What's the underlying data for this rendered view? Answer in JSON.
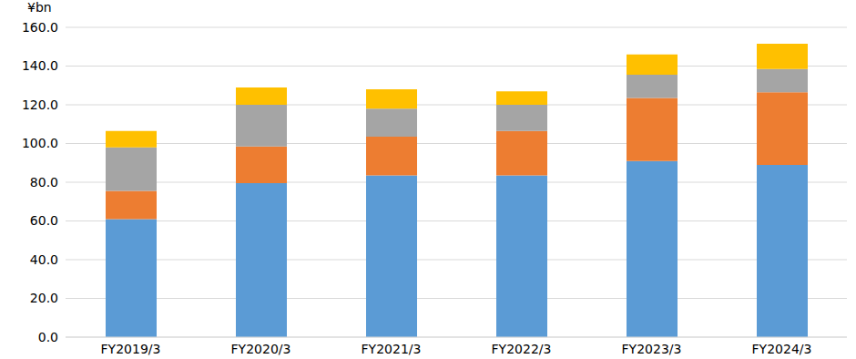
{
  "chart_data": {
    "type": "bar",
    "stacked": true,
    "y_label": "¥bn",
    "categories": [
      "FY2019/3",
      "FY2020/3",
      "FY2021/3",
      "FY2022/3",
      "FY2023/3",
      "FY2024/3"
    ],
    "series": [
      {
        "color": "#5B9BD5",
        "values": [
          61,
          79.5,
          83.5,
          83.5,
          91,
          89
        ]
      },
      {
        "color": "#ED7D31",
        "values": [
          14.5,
          19,
          20,
          23,
          32.5,
          37.5
        ]
      },
      {
        "color": "#A5A5A5",
        "values": [
          22.5,
          21.5,
          14.5,
          13.5,
          12,
          12
        ]
      },
      {
        "color": "#FFC000",
        "values": [
          8.5,
          9,
          10,
          7,
          10.5,
          13
        ]
      }
    ],
    "ylim": [
      0,
      160
    ],
    "yticks": [
      {
        "value": 0,
        "label": "0.0"
      },
      {
        "value": 20,
        "label": "20.0"
      },
      {
        "value": 40,
        "label": "40.0"
      },
      {
        "value": 60,
        "label": "60.0"
      },
      {
        "value": 80,
        "label": "80.0"
      },
      {
        "value": 100,
        "label": "100.0"
      },
      {
        "value": 120,
        "label": "120.0"
      },
      {
        "value": 140,
        "label": "140.0"
      },
      {
        "value": 160,
        "label": "160.0"
      }
    ],
    "grid": true
  }
}
